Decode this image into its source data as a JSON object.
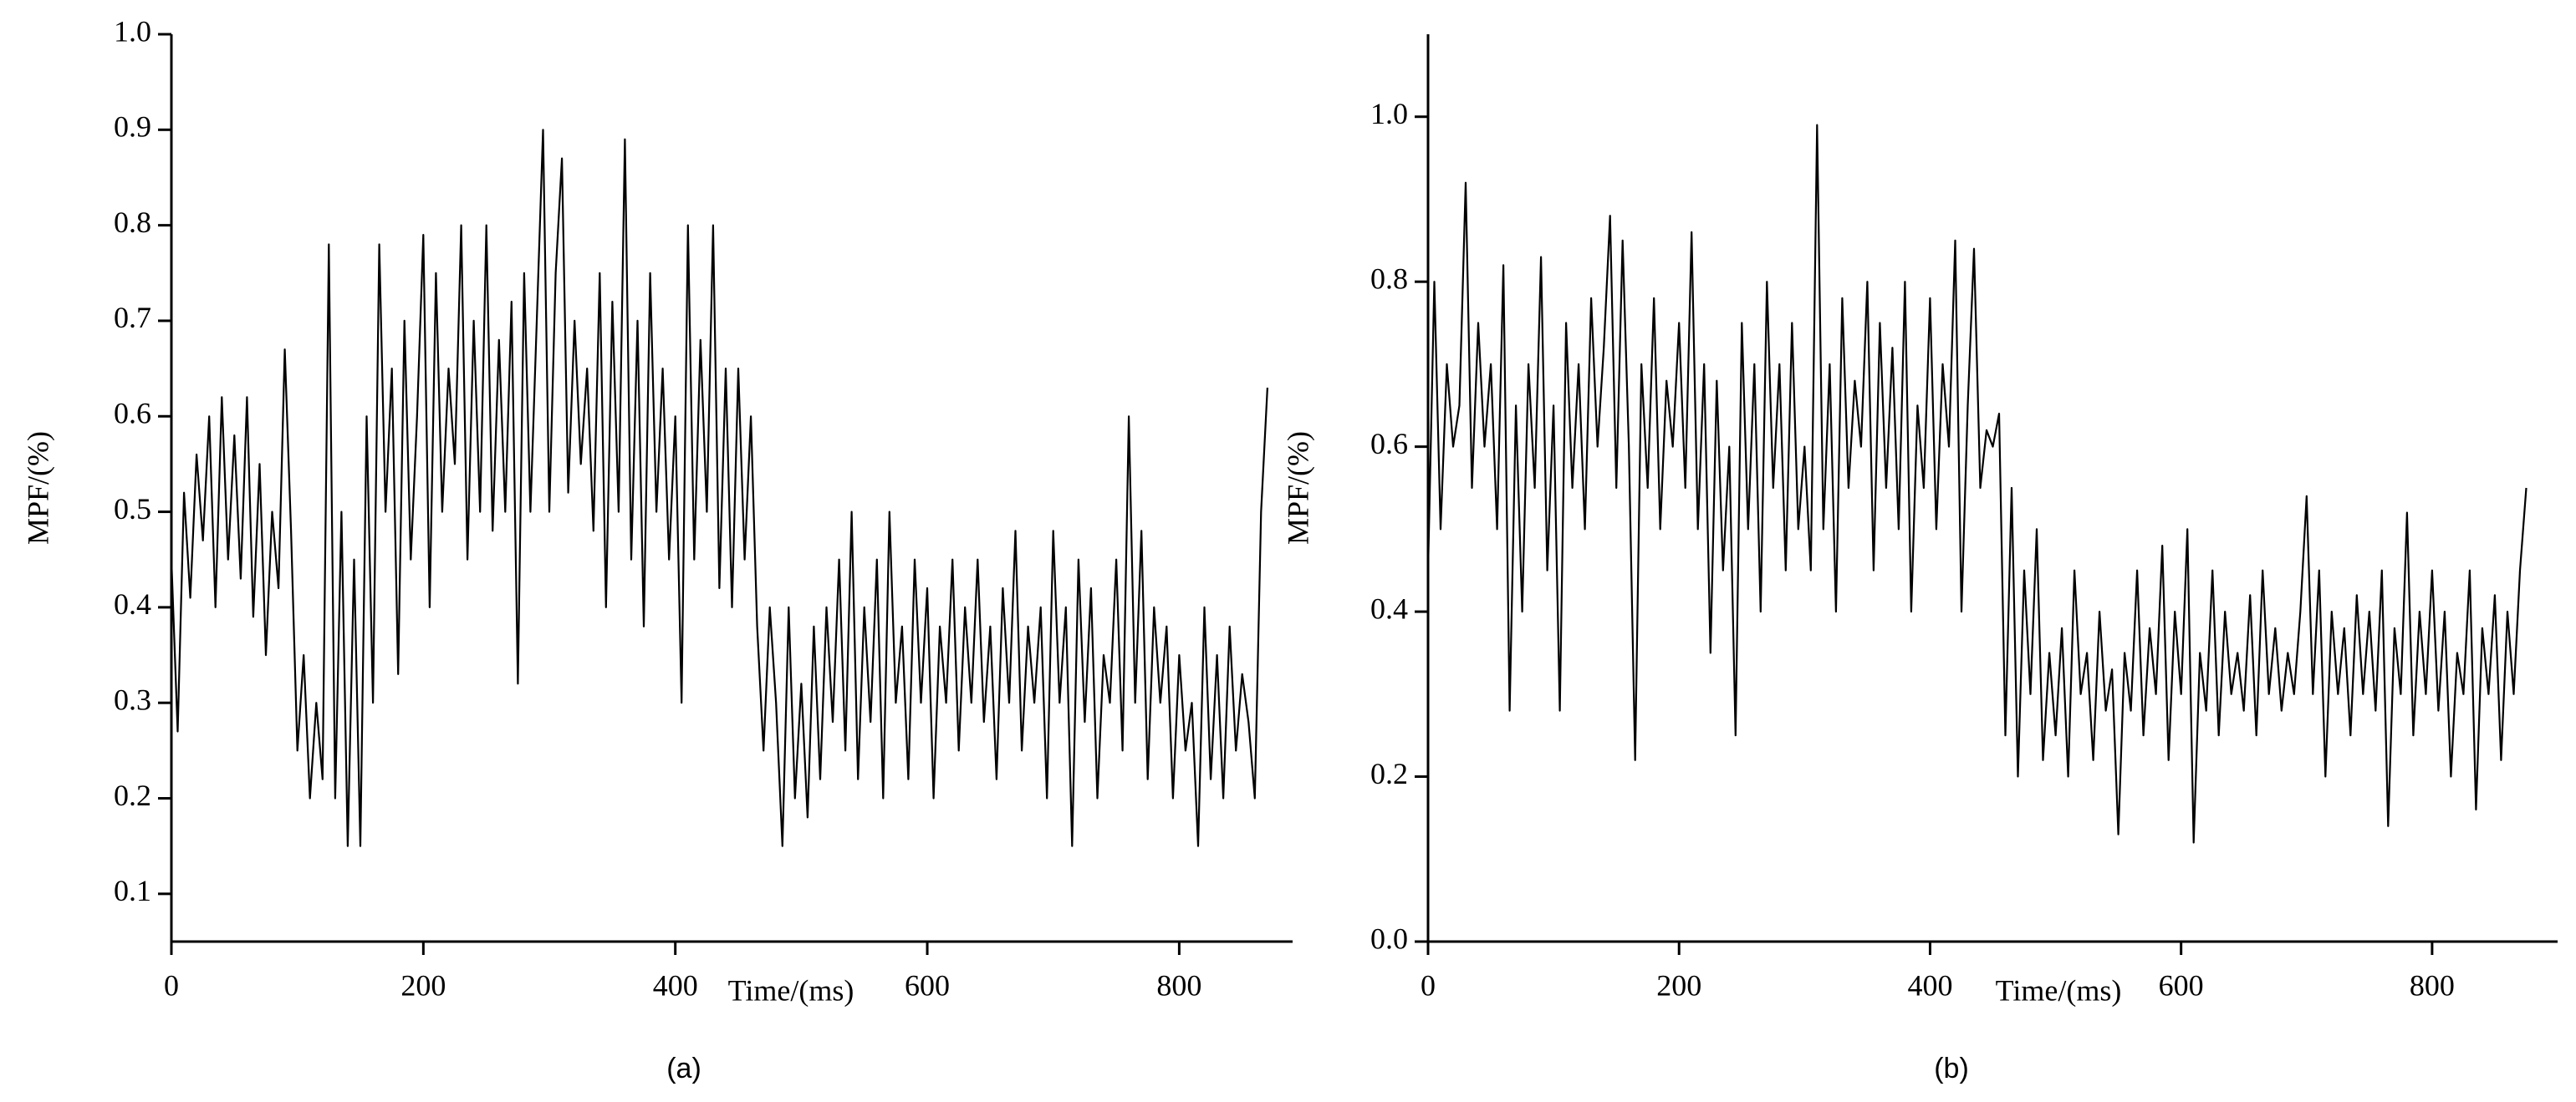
{
  "chart_data": [
    {
      "type": "line",
      "caption": "(a)",
      "xlabel": "Time/(ms)",
      "ylabel": "MPF/(%)",
      "xlim": [
        0,
        890
      ],
      "xticks": [
        0,
        200,
        400,
        600,
        800
      ],
      "ylim": [
        0.05,
        1.0
      ],
      "yticks": [
        0.1,
        0.2,
        0.3,
        0.4,
        0.5,
        0.6,
        0.7,
        0.8,
        0.9,
        {
          "value": 1,
          "label": "1.0"
        }
      ],
      "color": "#000000",
      "x": [
        0,
        5,
        10,
        15,
        20,
        25,
        30,
        35,
        40,
        45,
        50,
        55,
        60,
        65,
        70,
        75,
        80,
        85,
        90,
        95,
        100,
        105,
        110,
        115,
        120,
        125,
        130,
        135,
        140,
        145,
        150,
        155,
        160,
        165,
        170,
        175,
        180,
        185,
        190,
        195,
        200,
        205,
        210,
        215,
        220,
        225,
        230,
        235,
        240,
        245,
        250,
        255,
        260,
        265,
        270,
        275,
        280,
        285,
        290,
        295,
        300,
        305,
        310,
        315,
        320,
        325,
        330,
        335,
        340,
        345,
        350,
        355,
        360,
        365,
        370,
        375,
        380,
        385,
        390,
        395,
        400,
        405,
        410,
        415,
        420,
        425,
        430,
        435,
        440,
        445,
        450,
        455,
        460,
        465,
        470,
        475,
        480,
        485,
        490,
        495,
        500,
        505,
        510,
        515,
        520,
        525,
        530,
        535,
        540,
        545,
        550,
        555,
        560,
        565,
        570,
        575,
        580,
        585,
        590,
        595,
        600,
        605,
        610,
        615,
        620,
        625,
        630,
        635,
        640,
        645,
        650,
        655,
        660,
        665,
        670,
        675,
        680,
        685,
        690,
        695,
        700,
        705,
        710,
        715,
        720,
        725,
        730,
        735,
        740,
        745,
        750,
        755,
        760,
        765,
        770,
        775,
        780,
        785,
        790,
        795,
        800,
        805,
        810,
        815,
        820,
        825,
        830,
        835,
        840,
        845,
        850,
        855,
        860,
        865,
        870
      ],
      "values": [
        0.45,
        0.27,
        0.52,
        0.41,
        0.56,
        0.47,
        0.6,
        0.4,
        0.62,
        0.45,
        0.58,
        0.43,
        0.62,
        0.39,
        0.55,
        0.35,
        0.5,
        0.42,
        0.67,
        0.48,
        0.25,
        0.35,
        0.2,
        0.3,
        0.22,
        0.78,
        0.2,
        0.5,
        0.15,
        0.45,
        0.15,
        0.6,
        0.3,
        0.78,
        0.5,
        0.65,
        0.33,
        0.7,
        0.45,
        0.6,
        0.79,
        0.4,
        0.75,
        0.5,
        0.65,
        0.55,
        0.8,
        0.45,
        0.7,
        0.5,
        0.8,
        0.48,
        0.68,
        0.5,
        0.72,
        0.32,
        0.75,
        0.5,
        0.7,
        0.9,
        0.5,
        0.75,
        0.87,
        0.52,
        0.7,
        0.55,
        0.65,
        0.48,
        0.75,
        0.4,
        0.72,
        0.5,
        0.89,
        0.45,
        0.7,
        0.38,
        0.75,
        0.5,
        0.65,
        0.45,
        0.6,
        0.3,
        0.8,
        0.45,
        0.68,
        0.5,
        0.8,
        0.42,
        0.65,
        0.4,
        0.65,
        0.45,
        0.6,
        0.38,
        0.25,
        0.4,
        0.3,
        0.15,
        0.4,
        0.2,
        0.32,
        0.18,
        0.38,
        0.22,
        0.4,
        0.28,
        0.45,
        0.25,
        0.5,
        0.22,
        0.4,
        0.28,
        0.45,
        0.2,
        0.5,
        0.3,
        0.38,
        0.22,
        0.45,
        0.3,
        0.42,
        0.2,
        0.38,
        0.3,
        0.45,
        0.25,
        0.4,
        0.3,
        0.45,
        0.28,
        0.38,
        0.22,
        0.42,
        0.3,
        0.48,
        0.25,
        0.38,
        0.3,
        0.4,
        0.2,
        0.48,
        0.3,
        0.4,
        0.15,
        0.45,
        0.28,
        0.42,
        0.2,
        0.35,
        0.3,
        0.45,
        0.25,
        0.6,
        0.3,
        0.48,
        0.22,
        0.4,
        0.3,
        0.38,
        0.2,
        0.35,
        0.25,
        0.3,
        0.15,
        0.4,
        0.22,
        0.35,
        0.2,
        0.38,
        0.25,
        0.33,
        0.28,
        0.2,
        0.5,
        0.63
      ]
    },
    {
      "type": "line",
      "caption": "(b)",
      "xlabel": "Time/(ms)",
      "ylabel": "MPF/(%)",
      "xlim": [
        0,
        900
      ],
      "xticks": [
        0,
        200,
        400,
        600,
        800
      ],
      "ylim": [
        0,
        1.1
      ],
      "yticks": [
        {
          "value": 0,
          "label": "0.0"
        },
        0.2,
        0.4,
        0.6,
        0.8,
        {
          "value": 1,
          "label": "1.0"
        }
      ],
      "color": "#000000",
      "x": [
        0,
        5,
        10,
        15,
        20,
        25,
        30,
        35,
        40,
        45,
        50,
        55,
        60,
        65,
        70,
        75,
        80,
        85,
        90,
        95,
        100,
        105,
        110,
        115,
        120,
        125,
        130,
        135,
        140,
        145,
        150,
        155,
        160,
        165,
        170,
        175,
        180,
        185,
        190,
        195,
        200,
        205,
        210,
        215,
        220,
        225,
        230,
        235,
        240,
        245,
        250,
        255,
        260,
        265,
        270,
        275,
        280,
        285,
        290,
        295,
        300,
        305,
        310,
        315,
        320,
        325,
        330,
        335,
        340,
        345,
        350,
        355,
        360,
        365,
        370,
        375,
        380,
        385,
        390,
        395,
        400,
        405,
        410,
        415,
        420,
        425,
        430,
        435,
        440,
        445,
        450,
        455,
        460,
        465,
        470,
        475,
        480,
        485,
        490,
        495,
        500,
        505,
        510,
        515,
        520,
        525,
        530,
        535,
        540,
        545,
        550,
        555,
        560,
        565,
        570,
        575,
        580,
        585,
        590,
        595,
        600,
        605,
        610,
        615,
        620,
        625,
        630,
        635,
        640,
        645,
        650,
        655,
        660,
        665,
        670,
        675,
        680,
        685,
        690,
        695,
        700,
        705,
        710,
        715,
        720,
        725,
        730,
        735,
        740,
        745,
        750,
        755,
        760,
        765,
        770,
        775,
        780,
        785,
        790,
        795,
        800,
        805,
        810,
        815,
        820,
        825,
        830,
        835,
        840,
        845,
        850,
        855,
        860,
        865,
        870,
        875
      ],
      "values": [
        0.45,
        0.8,
        0.5,
        0.7,
        0.6,
        0.65,
        0.92,
        0.55,
        0.75,
        0.6,
        0.7,
        0.5,
        0.82,
        0.28,
        0.65,
        0.4,
        0.7,
        0.55,
        0.83,
        0.45,
        0.65,
        0.28,
        0.75,
        0.55,
        0.7,
        0.5,
        0.78,
        0.6,
        0.72,
        0.88,
        0.55,
        0.85,
        0.6,
        0.22,
        0.7,
        0.55,
        0.78,
        0.5,
        0.68,
        0.6,
        0.75,
        0.55,
        0.86,
        0.5,
        0.7,
        0.35,
        0.68,
        0.45,
        0.6,
        0.25,
        0.75,
        0.5,
        0.7,
        0.4,
        0.8,
        0.55,
        0.7,
        0.45,
        0.75,
        0.5,
        0.6,
        0.45,
        0.99,
        0.5,
        0.7,
        0.4,
        0.78,
        0.55,
        0.68,
        0.6,
        0.8,
        0.45,
        0.75,
        0.55,
        0.72,
        0.5,
        0.8,
        0.4,
        0.65,
        0.55,
        0.78,
        0.5,
        0.7,
        0.6,
        0.85,
        0.4,
        0.65,
        0.84,
        0.55,
        0.62,
        0.6,
        0.64,
        0.25,
        0.55,
        0.2,
        0.45,
        0.3,
        0.5,
        0.22,
        0.35,
        0.25,
        0.38,
        0.2,
        0.45,
        0.3,
        0.35,
        0.22,
        0.4,
        0.28,
        0.33,
        0.13,
        0.35,
        0.28,
        0.45,
        0.25,
        0.38,
        0.3,
        0.48,
        0.22,
        0.4,
        0.3,
        0.5,
        0.12,
        0.35,
        0.28,
        0.45,
        0.25,
        0.4,
        0.3,
        0.35,
        0.28,
        0.42,
        0.25,
        0.45,
        0.3,
        0.38,
        0.28,
        0.35,
        0.3,
        0.4,
        0.54,
        0.3,
        0.45,
        0.2,
        0.4,
        0.3,
        0.38,
        0.25,
        0.42,
        0.3,
        0.4,
        0.28,
        0.45,
        0.14,
        0.38,
        0.3,
        0.52,
        0.25,
        0.4,
        0.3,
        0.45,
        0.28,
        0.4,
        0.2,
        0.35,
        0.3,
        0.45,
        0.16,
        0.38,
        0.3,
        0.42,
        0.22,
        0.4,
        0.3,
        0.45,
        0.55
      ]
    }
  ]
}
